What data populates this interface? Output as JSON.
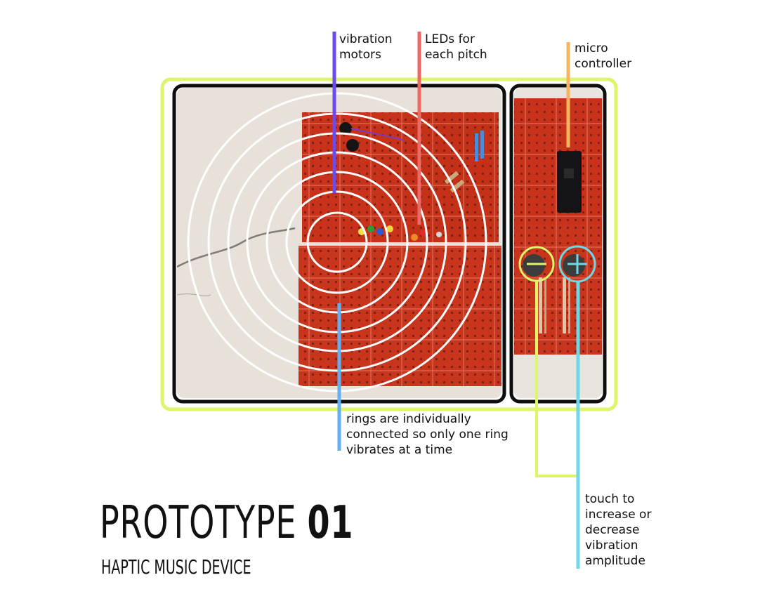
{
  "labels": {
    "vibration_motors": "vibration\nmotors",
    "leds": "LEDs for\neach pitch",
    "micro_controller": "micro\ncontroller",
    "rings": "rings are individually\nconnected so only one ring\nvibrates at a time",
    "touch": "touch to\nincrease or\ndecrease\nvibration\namplitude"
  },
  "title": {
    "main": "PROTOTYPE",
    "number": "01",
    "subtitle": "HAPTIC MUSIC DEVICE"
  },
  "colors": {
    "outer_frame": "#DDF56B",
    "panel_frame": "#0E0E0E",
    "vibration_line": "#6C4BEE",
    "led_line": "#EC6A65",
    "micro_line": "#F5B460",
    "rings_line": "#64B0EE",
    "plus_sensor": "#6FD8E6",
    "minus_sensor": "#DDF56B",
    "board": "#C8321A",
    "background_photo": "#E7E1DA",
    "rings": "#FFFFFF"
  },
  "icons": {
    "minus_sensor": "minus-icon",
    "plus_sensor": "plus-icon"
  }
}
